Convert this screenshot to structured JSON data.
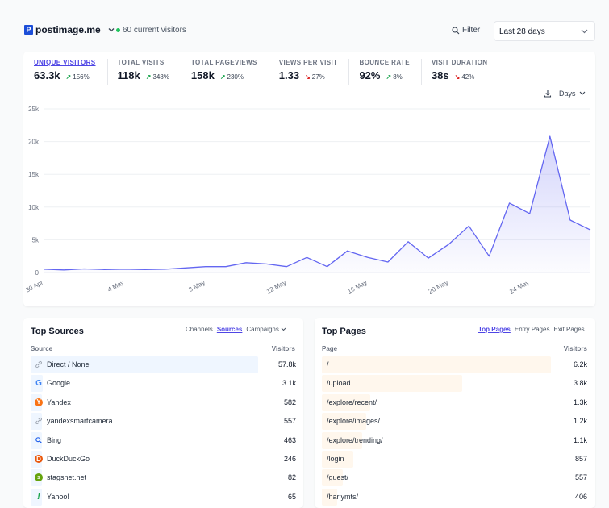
{
  "site": {
    "name": "postimage.me",
    "logo_letter": "P"
  },
  "visitors_now": "60 current visitors",
  "filter_label": "Filter",
  "period": "Last 28 days",
  "stats": [
    {
      "label": "UNIQUE VISITORS",
      "value": "63.3k",
      "change": "156%",
      "dir": "up",
      "active": true
    },
    {
      "label": "TOTAL VISITS",
      "value": "118k",
      "change": "348%",
      "dir": "up"
    },
    {
      "label": "TOTAL PAGEVIEWS",
      "value": "158k",
      "change": "230%",
      "dir": "up"
    },
    {
      "label": "VIEWS PER VISIT",
      "value": "1.33",
      "change": "27%",
      "dir": "down"
    },
    {
      "label": "BOUNCE RATE",
      "value": "92%",
      "change": "8%",
      "dir": "up"
    },
    {
      "label": "VISIT DURATION",
      "value": "38s",
      "change": "42%",
      "dir": "down"
    }
  ],
  "interval_label": "Days",
  "chart_data": {
    "type": "area",
    "x": [
      "30 Apr",
      "1 May",
      "2 May",
      "3 May",
      "4 May",
      "5 May",
      "6 May",
      "7 May",
      "8 May",
      "9 May",
      "10 May",
      "11 May",
      "12 May",
      "13 May",
      "14 May",
      "15 May",
      "16 May",
      "17 May",
      "18 May",
      "19 May",
      "20 May",
      "21 May",
      "22 May",
      "23 May",
      "24 May",
      "25 May",
      "26 May",
      "27 May"
    ],
    "series": [
      {
        "values": [
          500,
          400,
          550,
          450,
          500,
          450,
          500,
          700,
          900,
          900,
          1500,
          1300,
          900,
          2300,
          900,
          3300,
          2300,
          1600,
          4700,
          2200,
          4300,
          7100,
          2500,
          10600,
          9000,
          20800,
          8000,
          6500
        ],
        "color": "#6366f1"
      }
    ],
    "x_tick_labels": [
      "30 Apr",
      "4 May",
      "8 May",
      "12 May",
      "16 May",
      "20 May",
      "24 May"
    ],
    "y_ticks": [
      "0",
      "5k",
      "10k",
      "15k",
      "20k",
      "25k"
    ],
    "ylim": [
      0,
      25000
    ],
    "grid": true
  },
  "top_sources": {
    "title": "Top Sources",
    "tabs": [
      "Channels",
      "Sources",
      "Campaigns"
    ],
    "selected_tab": "Sources",
    "col_source": "Source",
    "col_visitors": "Visitors",
    "rows": [
      {
        "label": "Direct / None",
        "value": "57.8k",
        "n": 57800,
        "icon": "link-icon",
        "color": "#9ca3af"
      },
      {
        "label": "Google",
        "value": "3.1k",
        "n": 3100,
        "icon": "google-icon",
        "color": "#4285f4"
      },
      {
        "label": "Yandex",
        "value": "582",
        "n": 582,
        "icon": "yandex-icon",
        "color": "#f97316"
      },
      {
        "label": "yandexsmartcamera",
        "value": "557",
        "n": 557,
        "icon": "link-icon",
        "color": "#9ca3af"
      },
      {
        "label": "Bing",
        "value": "463",
        "n": 463,
        "icon": "bing-search-icon",
        "color": "#2563eb"
      },
      {
        "label": "DuckDuckGo",
        "value": "246",
        "n": 246,
        "icon": "duckduckgo-icon",
        "color": "#ea580c"
      },
      {
        "label": "stagsnet.net",
        "value": "82",
        "n": 82,
        "icon": "stagsnet-favicon-icon",
        "color": "#65a30d"
      },
      {
        "label": "Yahoo!",
        "value": "65",
        "n": 65,
        "icon": "yahoo-icon",
        "color": "#16a34a"
      }
    ]
  },
  "top_pages": {
    "title": "Top Pages",
    "tabs": [
      "Top Pages",
      "Entry Pages",
      "Exit Pages"
    ],
    "selected_tab": "Top Pages",
    "col_page": "Page",
    "col_visitors": "Visitors",
    "rows": [
      {
        "label": "/",
        "value": "6.2k",
        "n": 6200
      },
      {
        "label": "/upload",
        "value": "3.8k",
        "n": 3800
      },
      {
        "label": "/explore/recent/",
        "value": "1.3k",
        "n": 1300
      },
      {
        "label": "/explore/images/",
        "value": "1.2k",
        "n": 1200
      },
      {
        "label": "/explore/trending/",
        "value": "1.1k",
        "n": 1100
      },
      {
        "label": "/login",
        "value": "857",
        "n": 857
      },
      {
        "label": "/guest/",
        "value": "557",
        "n": 557
      },
      {
        "label": "/harlymts/",
        "value": "406",
        "n": 406
      }
    ]
  }
}
